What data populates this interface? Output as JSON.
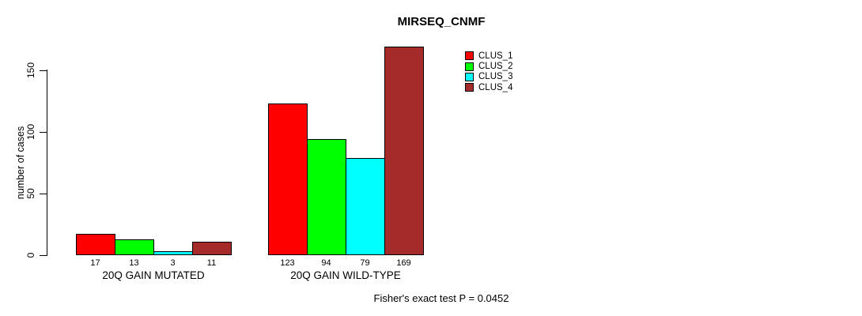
{
  "chart_data": {
    "type": "bar",
    "title": "MIRSEQ_CNMF",
    "ylabel": "number of cases",
    "xlabel": "",
    "yticks": [
      0,
      50,
      100,
      150
    ],
    "ylim": [
      0,
      175
    ],
    "grid": false,
    "legend_position": "top-right",
    "categories": [
      "20Q GAIN MUTATED",
      "20Q GAIN WILD-TYPE"
    ],
    "series": [
      {
        "name": "CLUS_1",
        "color": "#ff0000",
        "values": [
          17,
          123
        ]
      },
      {
        "name": "CLUS_2",
        "color": "#00ff00",
        "values": [
          13,
          94
        ]
      },
      {
        "name": "CLUS_3",
        "color": "#00ffff",
        "values": [
          3,
          79
        ]
      },
      {
        "name": "CLUS_4",
        "color": "#a52a2a",
        "values": [
          11,
          169
        ]
      }
    ],
    "bar_value_labels": [
      [
        "17",
        "13",
        "3",
        "11"
      ],
      [
        "123",
        "94",
        "79",
        "169"
      ]
    ],
    "annotation": "Fisher's exact test P = 0.0452"
  }
}
